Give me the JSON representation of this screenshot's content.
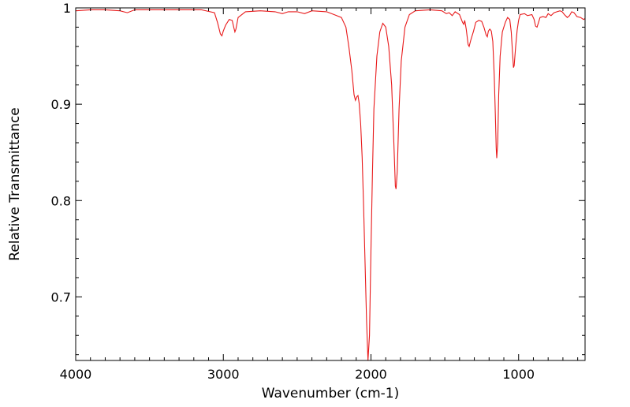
{
  "chart_data": {
    "type": "line",
    "title": "",
    "xlabel": "Wavenumber (cm-1)",
    "ylabel": "Relative Transmittance",
    "xlim": [
      4000,
      550
    ],
    "x_reversed": true,
    "ylim": [
      0.634,
      1.0
    ],
    "grid": false,
    "legend": "none",
    "x_ticks": [
      4000,
      3000,
      2000,
      1000
    ],
    "x_tick_labels": [
      "4000",
      "3000",
      "2000",
      "1000"
    ],
    "y_ticks": [
      0.7,
      0.8,
      0.9,
      1.0
    ],
    "y_tick_labels": [
      "0.7",
      "0.8",
      "0.9",
      "1"
    ],
    "series": [
      {
        "color": "#e8191a",
        "points": [
          [
            4000,
            0.997
          ],
          [
            3900,
            0.998
          ],
          [
            3800,
            0.998
          ],
          [
            3700,
            0.997
          ],
          [
            3650,
            0.995
          ],
          [
            3600,
            0.998
          ],
          [
            3500,
            0.998
          ],
          [
            3300,
            0.998
          ],
          [
            3150,
            0.998
          ],
          [
            3060,
            0.995
          ],
          [
            3040,
            0.985
          ],
          [
            3020,
            0.973
          ],
          [
            3010,
            0.971
          ],
          [
            3000,
            0.976
          ],
          [
            2985,
            0.982
          ],
          [
            2960,
            0.988
          ],
          [
            2940,
            0.987
          ],
          [
            2930,
            0.98
          ],
          [
            2922,
            0.975
          ],
          [
            2915,
            0.978
          ],
          [
            2900,
            0.99
          ],
          [
            2850,
            0.996
          ],
          [
            2750,
            0.997
          ],
          [
            2650,
            0.996
          ],
          [
            2600,
            0.994
          ],
          [
            2560,
            0.996
          ],
          [
            2500,
            0.996
          ],
          [
            2450,
            0.994
          ],
          [
            2400,
            0.997
          ],
          [
            2300,
            0.996
          ],
          [
            2250,
            0.993
          ],
          [
            2200,
            0.99
          ],
          [
            2170,
            0.98
          ],
          [
            2150,
            0.96
          ],
          [
            2130,
            0.935
          ],
          [
            2115,
            0.91
          ],
          [
            2105,
            0.904
          ],
          [
            2095,
            0.908
          ],
          [
            2088,
            0.909
          ],
          [
            2080,
            0.901
          ],
          [
            2070,
            0.88
          ],
          [
            2060,
            0.845
          ],
          [
            2050,
            0.795
          ],
          [
            2040,
            0.735
          ],
          [
            2030,
            0.675
          ],
          [
            2020,
            0.634
          ],
          [
            2010,
            0.66
          ],
          [
            2000,
            0.75
          ],
          [
            1990,
            0.83
          ],
          [
            1980,
            0.895
          ],
          [
            1960,
            0.95
          ],
          [
            1940,
            0.975
          ],
          [
            1920,
            0.984
          ],
          [
            1900,
            0.98
          ],
          [
            1880,
            0.96
          ],
          [
            1860,
            0.92
          ],
          [
            1845,
            0.86
          ],
          [
            1835,
            0.815
          ],
          [
            1830,
            0.812
          ],
          [
            1822,
            0.83
          ],
          [
            1810,
            0.895
          ],
          [
            1795,
            0.945
          ],
          [
            1770,
            0.98
          ],
          [
            1740,
            0.993
          ],
          [
            1700,
            0.997
          ],
          [
            1600,
            0.998
          ],
          [
            1520,
            0.997
          ],
          [
            1490,
            0.994
          ],
          [
            1470,
            0.995
          ],
          [
            1450,
            0.992
          ],
          [
            1430,
            0.996
          ],
          [
            1400,
            0.993
          ],
          [
            1380,
            0.985
          ],
          [
            1372,
            0.983
          ],
          [
            1365,
            0.987
          ],
          [
            1355,
            0.978
          ],
          [
            1342,
            0.962
          ],
          [
            1335,
            0.96
          ],
          [
            1325,
            0.966
          ],
          [
            1305,
            0.976
          ],
          [
            1290,
            0.985
          ],
          [
            1270,
            0.987
          ],
          [
            1250,
            0.986
          ],
          [
            1235,
            0.98
          ],
          [
            1220,
            0.972
          ],
          [
            1212,
            0.97
          ],
          [
            1205,
            0.976
          ],
          [
            1195,
            0.978
          ],
          [
            1185,
            0.976
          ],
          [
            1175,
            0.965
          ],
          [
            1165,
            0.93
          ],
          [
            1158,
            0.89
          ],
          [
            1152,
            0.855
          ],
          [
            1148,
            0.844
          ],
          [
            1142,
            0.86
          ],
          [
            1135,
            0.91
          ],
          [
            1125,
            0.95
          ],
          [
            1110,
            0.975
          ],
          [
            1090,
            0.985
          ],
          [
            1075,
            0.99
          ],
          [
            1060,
            0.988
          ],
          [
            1050,
            0.975
          ],
          [
            1042,
            0.955
          ],
          [
            1035,
            0.938
          ],
          [
            1030,
            0.94
          ],
          [
            1020,
            0.96
          ],
          [
            1010,
            0.977
          ],
          [
            1000,
            0.987
          ],
          [
            990,
            0.993
          ],
          [
            960,
            0.994
          ],
          [
            940,
            0.992
          ],
          [
            910,
            0.993
          ],
          [
            895,
            0.988
          ],
          [
            885,
            0.981
          ],
          [
            875,
            0.98
          ],
          [
            865,
            0.985
          ],
          [
            855,
            0.99
          ],
          [
            835,
            0.991
          ],
          [
            815,
            0.99
          ],
          [
            800,
            0.994
          ],
          [
            780,
            0.992
          ],
          [
            760,
            0.995
          ],
          [
            740,
            0.996
          ],
          [
            720,
            0.997
          ],
          [
            705,
            0.996
          ],
          [
            690,
            0.993
          ],
          [
            670,
            0.99
          ],
          [
            655,
            0.992
          ],
          [
            640,
            0.996
          ],
          [
            625,
            0.995
          ],
          [
            605,
            0.991
          ],
          [
            580,
            0.99
          ],
          [
            560,
            0.988
          ],
          [
            550,
            0.989
          ]
        ]
      }
    ]
  }
}
